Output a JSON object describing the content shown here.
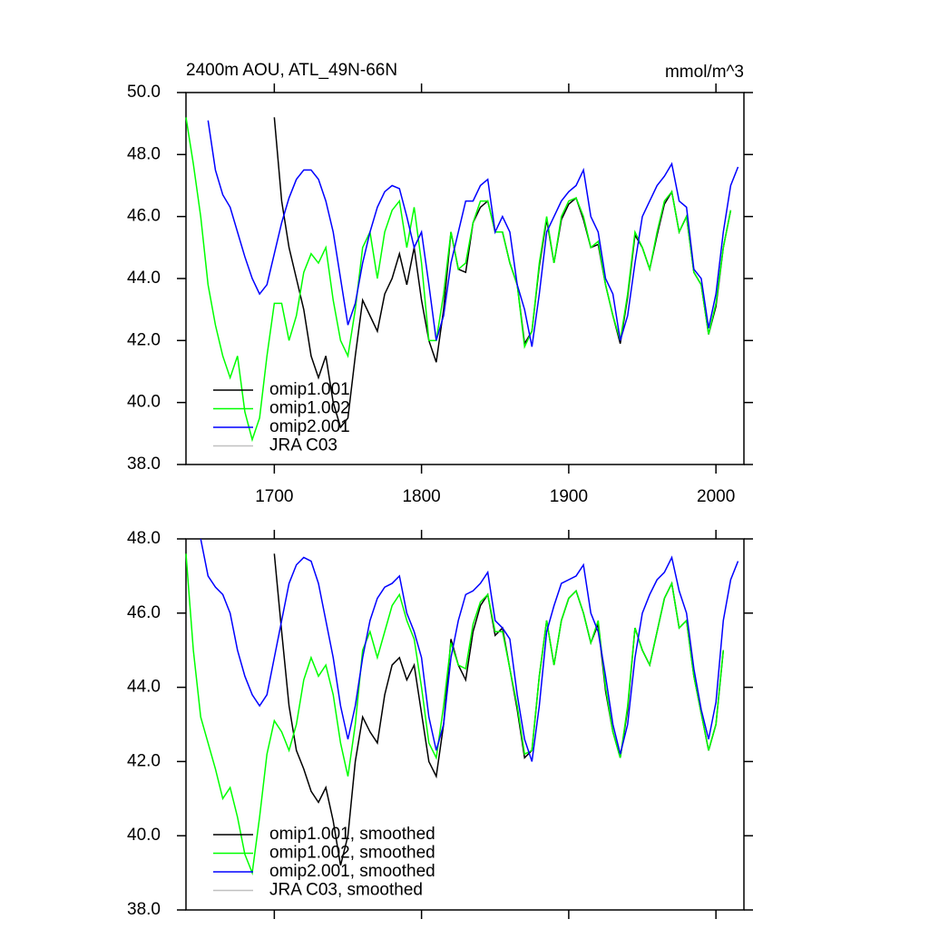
{
  "chart_data": [
    {
      "type": "line",
      "title": "2400m AOU, ATL_49N-66N",
      "units": "mmol/m^3",
      "x": [
        1640,
        1645,
        1650,
        1655,
        1660,
        1665,
        1670,
        1675,
        1680,
        1685,
        1690,
        1695,
        1700,
        1705,
        1710,
        1715,
        1720,
        1725,
        1730,
        1735,
        1740,
        1745,
        1750,
        1755,
        1760,
        1765,
        1770,
        1775,
        1780,
        1785,
        1790,
        1795,
        1800,
        1805,
        1810,
        1815,
        1820,
        1825,
        1830,
        1835,
        1840,
        1845,
        1850,
        1855,
        1860,
        1865,
        1870,
        1875,
        1880,
        1885,
        1890,
        1895,
        1900,
        1905,
        1910,
        1915,
        1920,
        1925,
        1930,
        1935,
        1940,
        1945,
        1950,
        1955,
        1960,
        1965,
        1970,
        1975,
        1980,
        1985,
        1990,
        1995,
        2000,
        2005,
        2010,
        2015
      ],
      "series": [
        {
          "name": "omip1.001",
          "color": "#000000",
          "values": [
            null,
            null,
            null,
            null,
            null,
            null,
            null,
            null,
            null,
            null,
            null,
            null,
            49.2,
            46.5,
            45.0,
            44.0,
            43.0,
            41.5,
            40.8,
            41.5,
            40.0,
            39.2,
            39.5,
            41.5,
            43.3,
            42.8,
            42.3,
            43.5,
            44.0,
            44.8,
            43.8,
            45.0,
            43.3,
            42.0,
            41.3,
            43.0,
            45.5,
            44.3,
            44.2,
            45.8,
            46.3,
            46.5,
            45.5,
            45.5,
            44.5,
            43.8,
            41.9,
            42.3,
            44.4,
            45.9,
            44.5,
            45.9,
            46.4,
            46.6,
            45.9,
            45.0,
            45.1,
            43.8,
            42.8,
            41.9,
            43.4,
            45.4,
            45.0,
            44.3,
            45.4,
            46.4,
            46.8,
            45.5,
            46.0,
            44.2,
            43.8,
            42.2,
            43.1,
            45.0,
            46.2,
            null
          ]
        },
        {
          "name": "omip1.002",
          "color": "#00ff00",
          "values": [
            49.2,
            47.7,
            46.0,
            43.8,
            42.5,
            41.5,
            40.8,
            41.5,
            39.7,
            38.8,
            39.5,
            41.5,
            43.2,
            43.2,
            42.0,
            42.8,
            44.2,
            44.8,
            44.5,
            45.0,
            43.3,
            42.0,
            41.5,
            43.0,
            45.0,
            45.5,
            44.0,
            45.5,
            46.2,
            46.5,
            45.0,
            46.3,
            44.5,
            42.0,
            42.0,
            43.5,
            45.5,
            44.3,
            44.5,
            45.8,
            46.5,
            46.5,
            45.5,
            45.5,
            44.5,
            43.8,
            41.8,
            42.3,
            44.5,
            46.0,
            44.5,
            46.0,
            46.5,
            46.6,
            46.0,
            45.0,
            45.2,
            43.8,
            42.8,
            42.0,
            43.5,
            45.5,
            45.0,
            44.3,
            45.5,
            46.5,
            46.8,
            45.5,
            46.0,
            44.2,
            43.8,
            42.2,
            43.2,
            45.0,
            46.2,
            null
          ]
        },
        {
          "name": "omip2.001",
          "color": "#0000ff",
          "values": [
            null,
            null,
            null,
            49.1,
            47.5,
            46.7,
            46.3,
            45.5,
            44.7,
            44.0,
            43.5,
            43.8,
            44.8,
            45.8,
            46.6,
            47.2,
            47.5,
            47.5,
            47.2,
            46.5,
            45.5,
            44.0,
            42.5,
            43.2,
            44.5,
            45.5,
            46.3,
            46.8,
            47.0,
            46.9,
            46.0,
            45.0,
            45.5,
            43.8,
            42.0,
            42.8,
            44.5,
            45.5,
            46.5,
            46.5,
            47.0,
            47.2,
            45.5,
            46.0,
            45.5,
            43.8,
            43.0,
            41.8,
            43.5,
            45.5,
            46.0,
            46.5,
            46.8,
            47.0,
            47.5,
            46.0,
            45.5,
            44.0,
            43.5,
            42.0,
            42.8,
            44.5,
            46.0,
            46.5,
            47.0,
            47.3,
            47.7,
            46.5,
            46.3,
            44.3,
            44.0,
            42.4,
            43.5,
            45.5,
            47.0,
            47.6
          ]
        },
        {
          "name": "JRA C03",
          "color": "#c0c0c0",
          "values": [
            null,
            null,
            null,
            null,
            null,
            null,
            null,
            null,
            null,
            null,
            null,
            null,
            null,
            null,
            null,
            null,
            null,
            null,
            null,
            null,
            null,
            null,
            null,
            null,
            null,
            null,
            null,
            null,
            null,
            null,
            null,
            null,
            null,
            null,
            null,
            null,
            null,
            null,
            null,
            null,
            null,
            null,
            null,
            null,
            null,
            null,
            null,
            null,
            null,
            null,
            null,
            null,
            null,
            null,
            null,
            null,
            null,
            null,
            null,
            null,
            null,
            null,
            null,
            null,
            null,
            null,
            null,
            null,
            null,
            null,
            null,
            null,
            null,
            null,
            null,
            null
          ]
        }
      ],
      "xlim": [
        1640,
        2019
      ],
      "xticks": [
        1700,
        1800,
        1900,
        2000
      ],
      "ylim": [
        38,
        50
      ],
      "yticks": [
        {
          "value": 38,
          "label": "38.0"
        },
        {
          "value": 40,
          "label": "40.0"
        },
        {
          "value": 42,
          "label": "42.0"
        },
        {
          "value": 44,
          "label": "44.0"
        },
        {
          "value": 46,
          "label": "46.0"
        },
        {
          "value": 48,
          "label": "48.0"
        },
        {
          "value": 50,
          "label": "50.0"
        }
      ],
      "legend": "lower left"
    },
    {
      "type": "line",
      "x": [
        1640,
        1645,
        1650,
        1655,
        1660,
        1665,
        1670,
        1675,
        1680,
        1685,
        1690,
        1695,
        1700,
        1705,
        1710,
        1715,
        1720,
        1725,
        1730,
        1735,
        1740,
        1745,
        1750,
        1755,
        1760,
        1765,
        1770,
        1775,
        1780,
        1785,
        1790,
        1795,
        1800,
        1805,
        1810,
        1815,
        1820,
        1825,
        1830,
        1835,
        1840,
        1845,
        1850,
        1855,
        1860,
        1865,
        1870,
        1875,
        1880,
        1885,
        1890,
        1895,
        1900,
        1905,
        1910,
        1915,
        1920,
        1925,
        1930,
        1935,
        1940,
        1945,
        1950,
        1955,
        1960,
        1965,
        1970,
        1975,
        1980,
        1985,
        1990,
        1995,
        2000,
        2005,
        2010,
        2015
      ],
      "series": [
        {
          "name": "omip1.001, smoothed",
          "color": "#000000",
          "values": [
            null,
            null,
            null,
            null,
            null,
            null,
            null,
            null,
            null,
            null,
            null,
            null,
            47.6,
            45.5,
            43.5,
            42.3,
            41.8,
            41.2,
            40.9,
            41.3,
            40.4,
            39.2,
            40.0,
            42.0,
            43.2,
            42.8,
            42.5,
            43.8,
            44.6,
            44.8,
            44.2,
            44.6,
            43.3,
            42.0,
            41.6,
            43.0,
            45.3,
            44.6,
            44.2,
            45.5,
            46.2,
            46.5,
            45.4,
            45.6,
            44.5,
            43.4,
            42.1,
            42.3,
            44.3,
            45.8,
            44.6,
            45.8,
            46.4,
            46.6,
            46.0,
            45.2,
            45.7,
            43.9,
            42.8,
            42.1,
            43.4,
            45.6,
            45.0,
            44.6,
            45.5,
            46.4,
            46.8,
            45.6,
            45.8,
            44.3,
            43.3,
            42.3,
            43.0,
            45.0,
            null,
            null
          ]
        },
        {
          "name": "omip1.002, smoothed",
          "color": "#00ff00",
          "values": [
            47.6,
            45.0,
            43.2,
            42.5,
            41.8,
            41.0,
            41.3,
            40.5,
            39.5,
            39.0,
            40.5,
            42.2,
            43.1,
            42.8,
            42.3,
            43.0,
            44.2,
            44.8,
            44.3,
            44.6,
            43.8,
            42.5,
            41.6,
            43.0,
            45.0,
            45.5,
            44.8,
            45.5,
            46.2,
            46.5,
            45.8,
            45.3,
            44.0,
            42.5,
            42.1,
            43.5,
            45.2,
            44.6,
            44.5,
            45.7,
            46.3,
            46.5,
            45.5,
            45.5,
            44.5,
            43.5,
            42.2,
            42.3,
            44.3,
            45.8,
            44.6,
            45.8,
            46.4,
            46.6,
            46.0,
            45.2,
            45.8,
            44.0,
            42.8,
            42.1,
            43.5,
            45.6,
            45.0,
            44.6,
            45.5,
            46.4,
            46.8,
            45.6,
            45.8,
            44.3,
            43.3,
            42.3,
            43.0,
            45.0,
            null,
            null
          ]
        },
        {
          "name": "omip2.001, smoothed",
          "color": "#0000ff",
          "values": [
            null,
            null,
            48.0,
            47.0,
            46.7,
            46.5,
            46.0,
            45.0,
            44.3,
            43.8,
            43.5,
            43.8,
            44.8,
            45.8,
            46.8,
            47.3,
            47.5,
            47.4,
            46.8,
            45.8,
            44.8,
            43.5,
            42.6,
            43.5,
            44.8,
            45.8,
            46.4,
            46.7,
            46.8,
            47.0,
            46.0,
            45.5,
            44.8,
            43.2,
            42.3,
            43.0,
            44.8,
            45.8,
            46.5,
            46.6,
            46.8,
            47.1,
            45.8,
            45.6,
            45.3,
            43.8,
            42.6,
            42.0,
            43.5,
            45.5,
            46.2,
            46.8,
            46.9,
            47.0,
            47.3,
            46.0,
            45.5,
            44.3,
            43.0,
            42.2,
            43.0,
            44.8,
            46.0,
            46.5,
            46.9,
            47.1,
            47.5,
            46.6,
            46.0,
            44.5,
            43.4,
            42.6,
            43.6,
            45.8,
            46.9,
            47.4
          ]
        },
        {
          "name": "JRA C03, smoothed",
          "color": "#c0c0c0",
          "values": [
            null,
            null,
            null,
            null,
            null,
            null,
            null,
            null,
            null,
            null,
            null,
            null,
            null,
            null,
            null,
            null,
            null,
            null,
            null,
            null,
            null,
            null,
            null,
            null,
            null,
            null,
            null,
            null,
            null,
            null,
            null,
            null,
            null,
            null,
            null,
            null,
            null,
            null,
            null,
            null,
            null,
            null,
            null,
            null,
            null,
            null,
            null,
            null,
            null,
            null,
            null,
            null,
            null,
            null,
            null,
            null,
            null,
            null,
            null,
            null,
            null,
            null,
            null,
            null,
            null,
            null,
            null,
            null,
            null,
            null,
            null,
            null,
            null,
            null,
            null,
            null
          ]
        }
      ],
      "xlim": [
        1640,
        2019
      ],
      "xticks": [
        1700,
        1800,
        1900,
        2000
      ],
      "ylim": [
        38,
        48
      ],
      "yticks": [
        {
          "value": 38,
          "label": "38.0"
        },
        {
          "value": 40,
          "label": "40.0"
        },
        {
          "value": 42,
          "label": "42.0"
        },
        {
          "value": 44,
          "label": "44.0"
        },
        {
          "value": 46,
          "label": "46.0"
        },
        {
          "value": 48,
          "label": "48.0"
        }
      ],
      "legend": "lower left"
    }
  ]
}
